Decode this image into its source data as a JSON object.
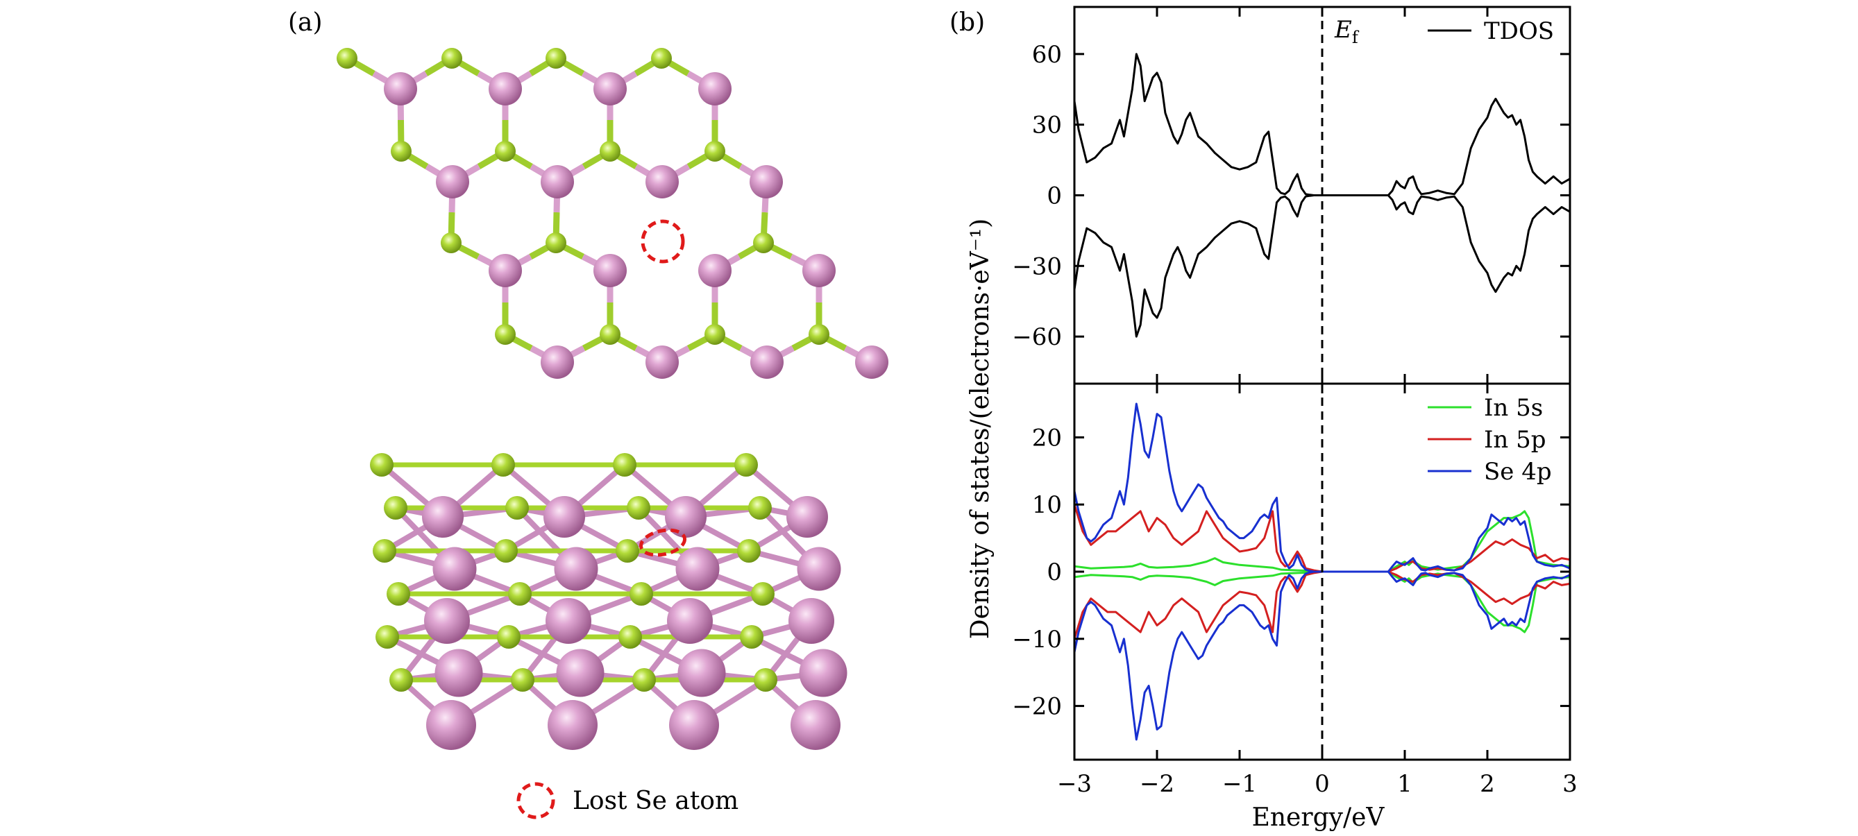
{
  "panel_a": {
    "label": "(a)",
    "legend_text": "Lost Se atom",
    "colors": {
      "in_atom": "#d48fc4",
      "se_atom": "#a6d42c",
      "marker": "#e01a1a"
    }
  },
  "panel_b": {
    "label": "(b)"
  },
  "ylabel": "Density of states/(electrons·eV⁻¹)",
  "xlabel": "Energy/eV",
  "ef_label": "E",
  "ef_sub": "f",
  "chart_data": [
    {
      "type": "line",
      "xlim": [
        -3,
        3
      ],
      "ylim": [
        -80,
        80
      ],
      "xticks": [
        -3,
        -2,
        -1,
        0,
        1,
        2,
        3
      ],
      "xtick_labels": [
        "−3",
        "−2",
        "−1",
        "0",
        "1",
        "2",
        "3"
      ],
      "yticks": [
        -60,
        -30,
        0,
        30,
        60
      ],
      "ytick_labels": [
        "−60",
        "−30",
        "0",
        "30",
        "60"
      ],
      "legend_position": "top-right",
      "mirror": true,
      "series": [
        {
          "name": "TDOS",
          "color": "#000000",
          "x": [
            -3.0,
            -2.95,
            -2.85,
            -2.75,
            -2.65,
            -2.55,
            -2.45,
            -2.4,
            -2.35,
            -2.3,
            -2.25,
            -2.2,
            -2.15,
            -2.1,
            -2.05,
            -2.0,
            -1.95,
            -1.9,
            -1.85,
            -1.8,
            -1.75,
            -1.7,
            -1.65,
            -1.6,
            -1.5,
            -1.4,
            -1.3,
            -1.2,
            -1.1,
            -1.0,
            -0.9,
            -0.8,
            -0.7,
            -0.65,
            -0.6,
            -0.55,
            -0.5,
            -0.45,
            -0.4,
            -0.35,
            -0.3,
            -0.25,
            -0.2,
            -0.15,
            -0.1,
            0.0,
            0.8,
            0.85,
            0.9,
            0.95,
            1.0,
            1.05,
            1.1,
            1.15,
            1.2,
            1.3,
            1.4,
            1.5,
            1.6,
            1.7,
            1.8,
            1.9,
            2.0,
            2.05,
            2.1,
            2.15,
            2.2,
            2.25,
            2.3,
            2.35,
            2.4,
            2.45,
            2.5,
            2.55,
            2.6,
            2.7,
            2.8,
            2.9,
            3.0
          ],
          "y": [
            40,
            28,
            14,
            16,
            20,
            22,
            32,
            25,
            35,
            45,
            60,
            55,
            40,
            45,
            50,
            52,
            48,
            35,
            30,
            25,
            22,
            26,
            32,
            35,
            25,
            22,
            18,
            15,
            12,
            11,
            12,
            14,
            25,
            27,
            15,
            3,
            1,
            0.5,
            2,
            6,
            9,
            3,
            0.5,
            0.2,
            0,
            0,
            0,
            2,
            6,
            4,
            3,
            7,
            8,
            3,
            0.5,
            1,
            2,
            1,
            0.5,
            5,
            20,
            28,
            33,
            38,
            41,
            38,
            35,
            33,
            34,
            30,
            32,
            25,
            15,
            10,
            8,
            5,
            8,
            5,
            7
          ]
        }
      ]
    },
    {
      "type": "line",
      "xlim": [
        -3,
        3
      ],
      "ylim": [
        -28,
        28
      ],
      "xticks": [
        -3,
        -2,
        -1,
        0,
        1,
        2,
        3
      ],
      "xtick_labels": [
        "−3",
        "−2",
        "−1",
        "0",
        "1",
        "2",
        "3"
      ],
      "yticks": [
        -20,
        -10,
        0,
        10,
        20
      ],
      "ytick_labels": [
        "−20",
        "−10",
        "0",
        "10",
        "20"
      ],
      "legend_position": "top-right",
      "mirror": true,
      "series": [
        {
          "name": "In 5s",
          "color": "#2ce02c",
          "x": [
            -3.0,
            -2.8,
            -2.6,
            -2.4,
            -2.3,
            -2.2,
            -2.1,
            -2.0,
            -1.8,
            -1.6,
            -1.4,
            -1.3,
            -1.2,
            -1.0,
            -0.8,
            -0.6,
            -0.5,
            -0.3,
            -0.1,
            0.0,
            0.8,
            0.9,
            1.0,
            1.05,
            1.1,
            1.2,
            1.4,
            1.5,
            1.7,
            1.8,
            2.0,
            2.1,
            2.2,
            2.3,
            2.4,
            2.45,
            2.5,
            2.55,
            2.6,
            2.8,
            3.0
          ],
          "y": [
            0.8,
            0.5,
            0.6,
            0.7,
            0.8,
            1.2,
            0.7,
            0.6,
            0.7,
            0.9,
            1.5,
            2.0,
            1.4,
            1.0,
            0.8,
            0.6,
            0.3,
            0.2,
            0.1,
            0,
            0,
            0.8,
            1.5,
            1.0,
            1.6,
            0.8,
            0.3,
            0.5,
            0.8,
            2.0,
            6.0,
            7.0,
            8.0,
            8.0,
            8.5,
            9.0,
            8.0,
            5.0,
            1.5,
            1.0,
            0.8
          ]
        },
        {
          "name": "In 5p",
          "color": "#d42020",
          "x": [
            -3.0,
            -2.9,
            -2.8,
            -2.7,
            -2.6,
            -2.5,
            -2.4,
            -2.3,
            -2.2,
            -2.1,
            -2.0,
            -1.9,
            -1.8,
            -1.7,
            -1.6,
            -1.5,
            -1.4,
            -1.3,
            -1.2,
            -1.1,
            -1.0,
            -0.9,
            -0.8,
            -0.7,
            -0.6,
            -0.55,
            -0.5,
            -0.45,
            -0.4,
            -0.3,
            -0.25,
            -0.2,
            -0.1,
            0.0,
            0.8,
            0.9,
            1.0,
            1.1,
            1.2,
            1.3,
            1.4,
            1.5,
            1.6,
            1.7,
            1.8,
            1.9,
            2.0,
            2.1,
            2.2,
            2.3,
            2.4,
            2.5,
            2.6,
            2.7,
            2.8,
            2.9,
            3.0
          ],
          "y": [
            10,
            6,
            4,
            5,
            6,
            6,
            7,
            8,
            9,
            6,
            8,
            7,
            5,
            4,
            5,
            6,
            9,
            7,
            5,
            4,
            3,
            3.2,
            3.5,
            5,
            9,
            3,
            1.5,
            0.8,
            1,
            3,
            2,
            0.5,
            0.2,
            0,
            0,
            0.5,
            1.2,
            1.5,
            0.5,
            0.3,
            0.5,
            0.3,
            0.2,
            0.8,
            1.5,
            2.5,
            3.5,
            4.5,
            4.0,
            4.8,
            4.0,
            3.5,
            2.0,
            2.5,
            1.5,
            2.0,
            1.8
          ]
        },
        {
          "name": "Se 4p",
          "color": "#1830d0",
          "x": [
            -3.0,
            -2.95,
            -2.9,
            -2.85,
            -2.8,
            -2.75,
            -2.7,
            -2.65,
            -2.6,
            -2.55,
            -2.5,
            -2.45,
            -2.4,
            -2.35,
            -2.3,
            -2.25,
            -2.2,
            -2.15,
            -2.1,
            -2.05,
            -2.0,
            -1.95,
            -1.9,
            -1.85,
            -1.8,
            -1.75,
            -1.7,
            -1.65,
            -1.6,
            -1.55,
            -1.5,
            -1.45,
            -1.4,
            -1.35,
            -1.3,
            -1.25,
            -1.2,
            -1.15,
            -1.1,
            -1.05,
            -1.0,
            -0.95,
            -0.9,
            -0.85,
            -0.8,
            -0.75,
            -0.7,
            -0.65,
            -0.6,
            -0.55,
            -0.5,
            -0.45,
            -0.4,
            -0.35,
            -0.3,
            -0.25,
            -0.2,
            -0.15,
            -0.1,
            0.0,
            0.8,
            0.85,
            0.9,
            0.95,
            1.0,
            1.05,
            1.1,
            1.15,
            1.2,
            1.25,
            1.3,
            1.4,
            1.5,
            1.6,
            1.7,
            1.8,
            1.9,
            2.0,
            2.05,
            2.1,
            2.15,
            2.2,
            2.25,
            2.3,
            2.35,
            2.4,
            2.45,
            2.5,
            2.55,
            2.6,
            2.7,
            2.8,
            2.9,
            3.0
          ],
          "y": [
            12,
            9,
            7,
            5,
            4.5,
            5,
            6,
            7,
            7.5,
            8,
            10,
            12,
            10,
            14,
            20,
            25,
            22,
            18,
            17,
            20,
            23.5,
            23,
            19,
            15,
            12,
            10,
            9,
            10,
            11,
            12,
            13,
            12.5,
            11,
            10,
            9,
            8,
            7.5,
            6.5,
            6,
            5.5,
            5,
            5,
            5.5,
            6,
            7,
            8,
            8.5,
            8,
            10,
            11,
            3,
            1.5,
            0.5,
            1,
            2.5,
            1,
            0.3,
            0.1,
            0,
            0,
            0,
            0.8,
            1.5,
            1.2,
            1.0,
            1.5,
            2.0,
            1.0,
            0.3,
            0.2,
            0.5,
            0.8,
            0.3,
            0.2,
            0.5,
            2.0,
            5.0,
            6.5,
            8.5,
            8.0,
            7.5,
            7.0,
            8.0,
            7.5,
            8.0,
            7.0,
            7.5,
            5.0,
            2.5,
            1.5,
            1.0,
            0.8,
            1.0,
            0.5
          ]
        }
      ]
    }
  ]
}
